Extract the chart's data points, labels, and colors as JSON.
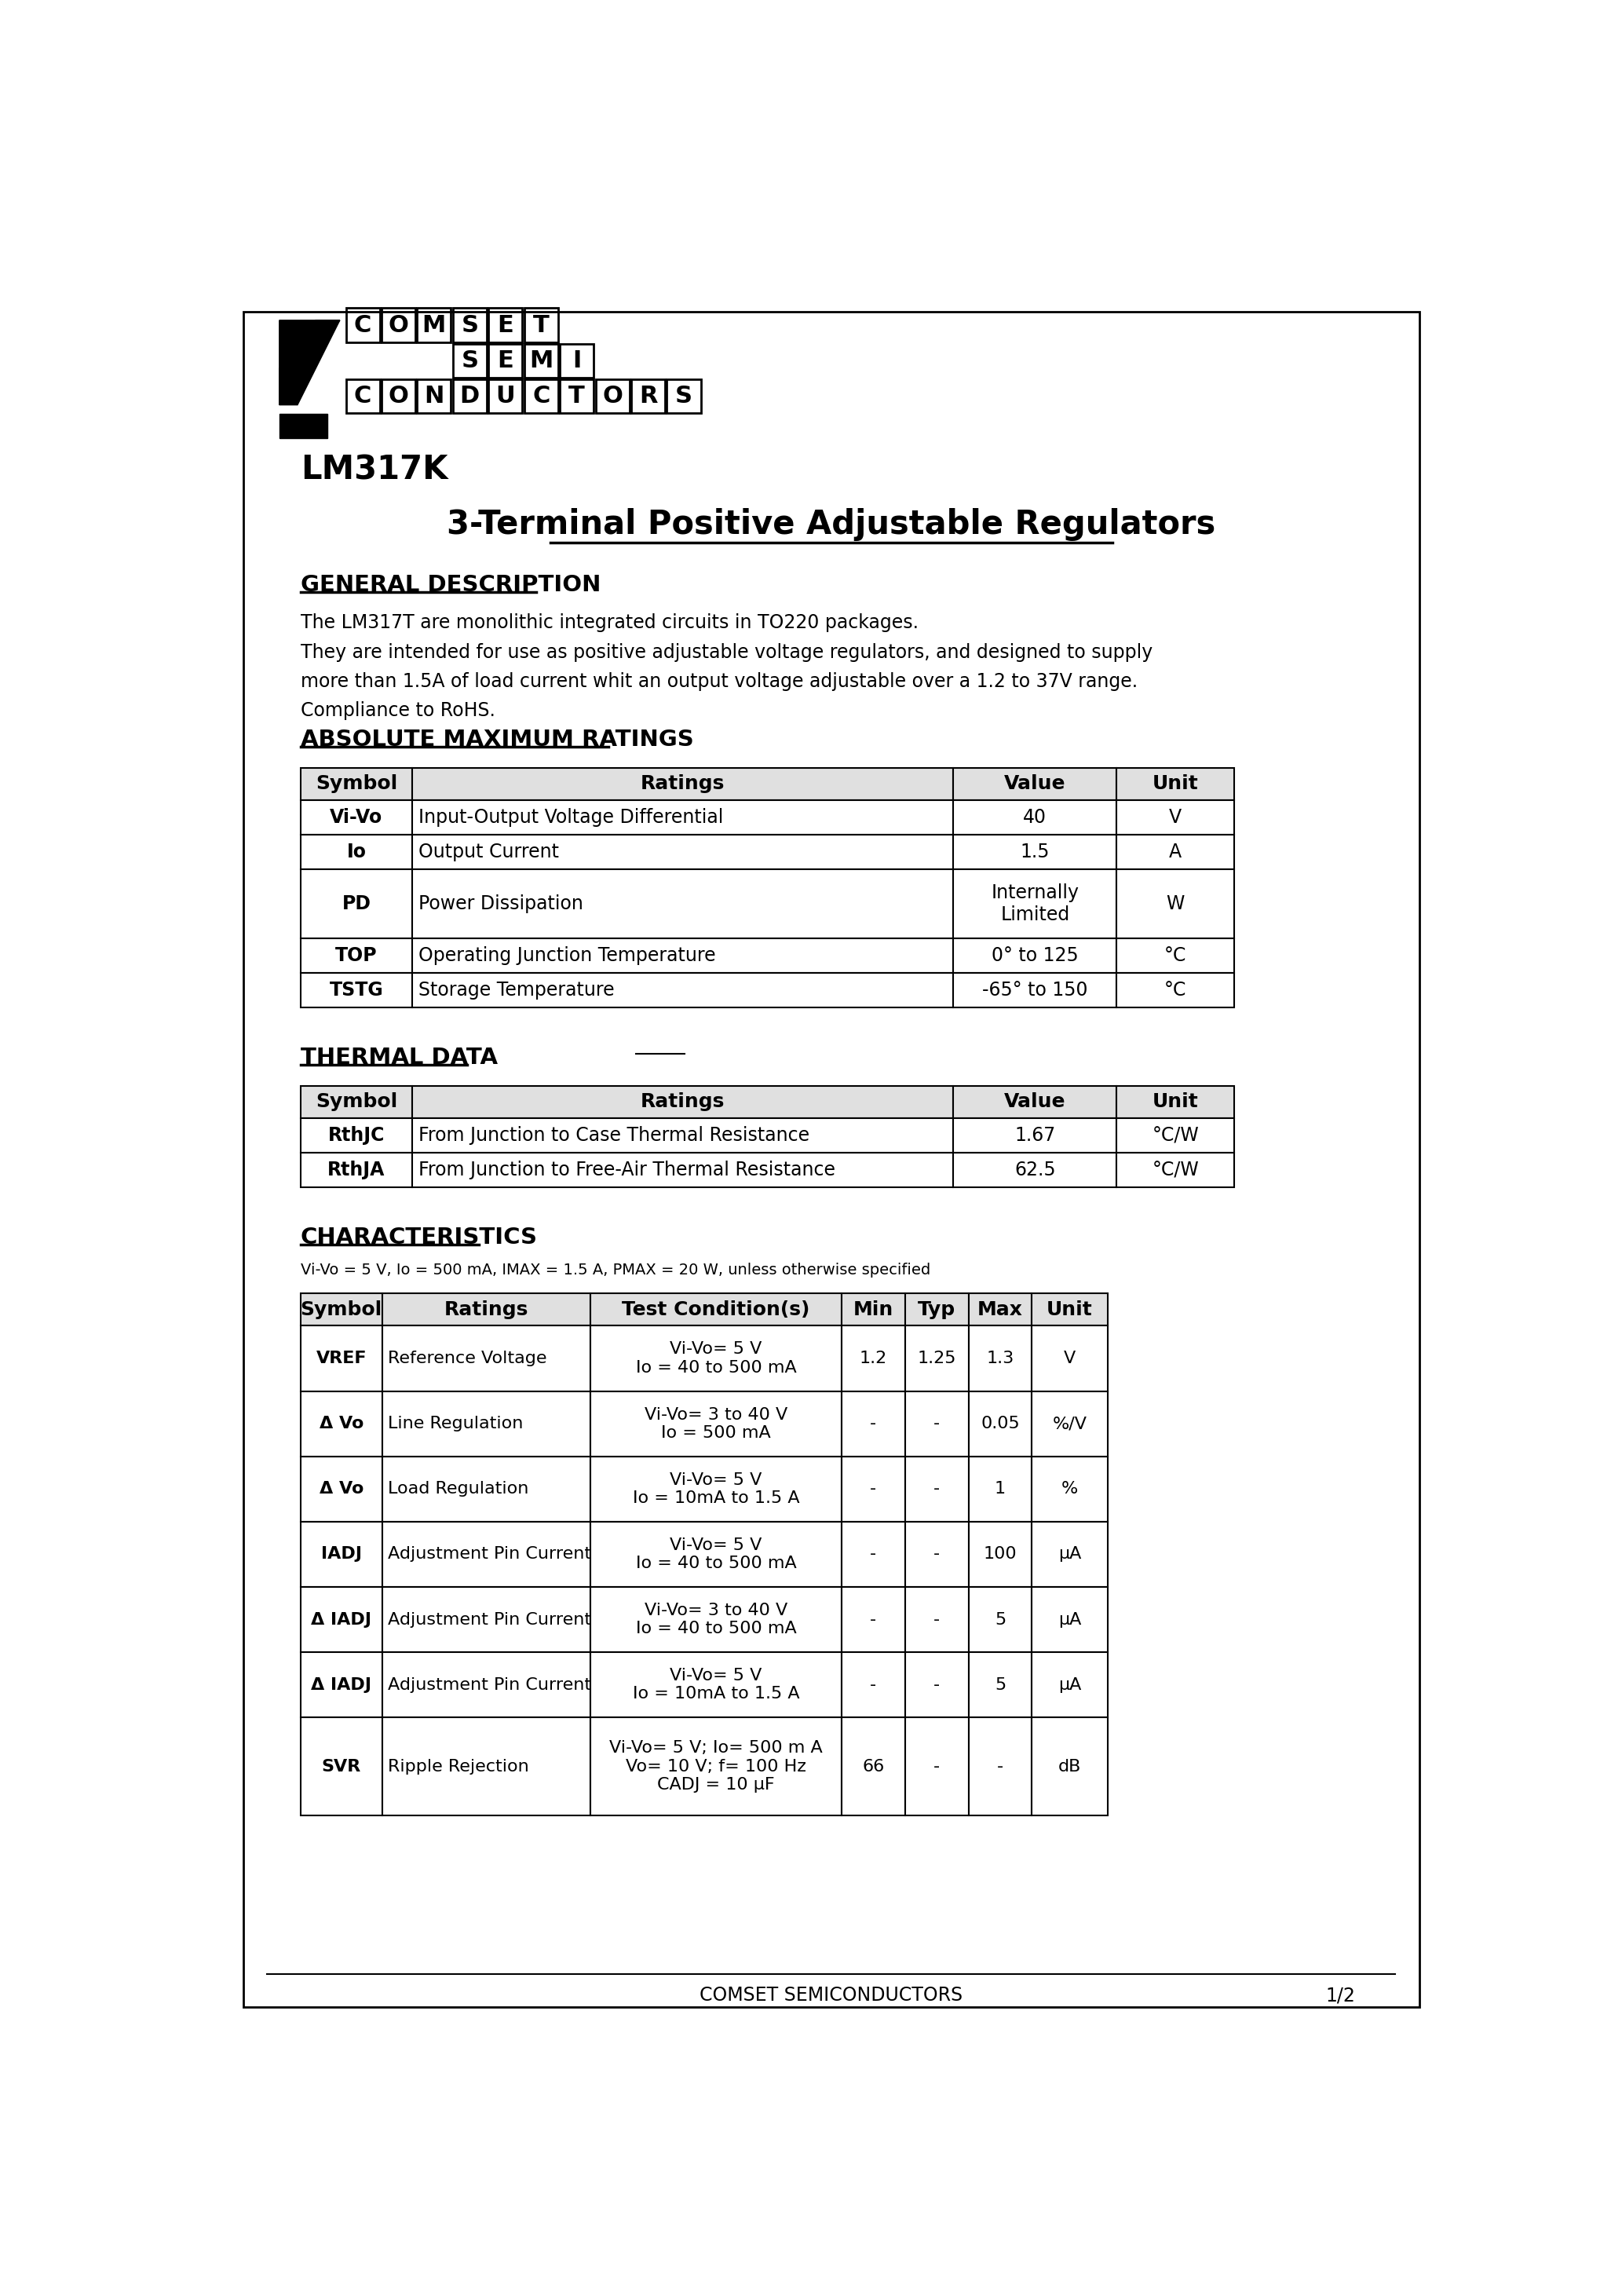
{
  "page_title": "LM317K",
  "subtitle": "3-Terminal Positive Adjustable Regulators",
  "general_desc_title": "GENERAL DESCRIPTION",
  "general_desc_text": "The LM317T are monolithic integrated circuits in TO220 packages.\nThey are intended for use as positive adjustable voltage regulators, and designed to supply\nmore than 1.5A of load current whit an output voltage adjustable over a 1.2 to 37V range.\nCompliance to RoHS.",
  "abs_max_title": "ABSOLUTE MAXIMUM RATINGS",
  "abs_max_headers": [
    "Symbol",
    "Ratings",
    "Value",
    "Unit"
  ],
  "thermal_title": "THERMAL DATA",
  "thermal_headers": [
    "Symbol",
    "Ratings",
    "Value",
    "Unit"
  ],
  "char_title": "CHARACTERISTICS",
  "char_conditions": "Vi-Vo = 5 V, Io = 500 mA, IMAX = 1.5 A, PMAX = 20 W, unless otherwise specified",
  "char_headers": [
    "Symbol",
    "Ratings",
    "Test Condition(s)",
    "Min",
    "Typ",
    "Max",
    "Unit"
  ],
  "footer_left": "COMSET SEMICONDUCTORS",
  "footer_right": "1/2",
  "bg_color": "#ffffff",
  "text_color": "#000000"
}
